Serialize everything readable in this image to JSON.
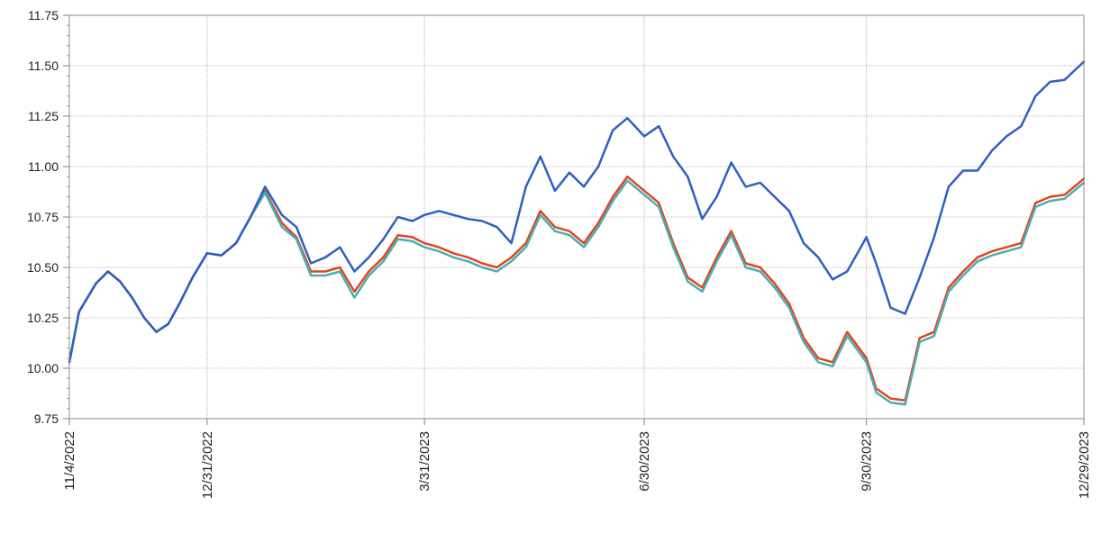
{
  "chart_data": {
    "type": "line",
    "title": "",
    "xlabel": "",
    "ylabel": "",
    "ylim": [
      9.75,
      11.75
    ],
    "yticks": [
      "9.75",
      "10.00",
      "10.25",
      "10.50",
      "10.75",
      "11.00",
      "11.25",
      "11.50",
      "11.75"
    ],
    "xticks": [
      "11/4/2022",
      "12/31/2022",
      "3/31/2023",
      "6/30/2023",
      "9/30/2023",
      "12/29/2023"
    ],
    "xtick_dates": [
      "2022-11-04",
      "2022-12-31",
      "2023-03-31",
      "2023-06-30",
      "2023-09-30",
      "2023-12-29"
    ],
    "xlim": [
      "2022-11-04",
      "2023-12-29"
    ],
    "grid": true,
    "legend": "none",
    "series": [
      {
        "color": "#2f5fc4",
        "x": [
          "2022-11-04",
          "2022-11-08",
          "2022-11-10",
          "2022-11-15",
          "2022-11-20",
          "2022-11-25",
          "2022-11-30",
          "2022-12-05",
          "2022-12-10",
          "2022-12-15",
          "2022-12-20",
          "2022-12-25",
          "2022-12-31",
          "2023-01-06",
          "2023-01-12",
          "2023-01-18",
          "2023-01-24",
          "2023-01-31",
          "2023-02-06",
          "2023-02-12",
          "2023-02-18",
          "2023-02-24",
          "2023-03-02",
          "2023-03-08",
          "2023-03-14",
          "2023-03-20",
          "2023-03-26",
          "2023-03-31",
          "2023-04-06",
          "2023-04-12",
          "2023-04-18",
          "2023-04-24",
          "2023-04-30",
          "2023-05-06",
          "2023-05-12",
          "2023-05-18",
          "2023-05-24",
          "2023-05-30",
          "2023-06-05",
          "2023-06-11",
          "2023-06-17",
          "2023-06-23",
          "2023-06-30",
          "2023-07-06",
          "2023-07-12",
          "2023-07-18",
          "2023-07-24",
          "2023-07-30",
          "2023-08-05",
          "2023-08-11",
          "2023-08-17",
          "2023-08-23",
          "2023-08-29",
          "2023-09-04",
          "2023-09-10",
          "2023-09-16",
          "2023-09-22",
          "2023-09-30",
          "2023-10-04",
          "2023-10-10",
          "2023-10-16",
          "2023-10-22",
          "2023-10-28",
          "2023-11-03",
          "2023-11-09",
          "2023-11-15",
          "2023-11-21",
          "2023-11-27",
          "2023-12-03",
          "2023-12-09",
          "2023-12-15",
          "2023-12-21",
          "2023-12-29"
        ],
        "values": [
          10.03,
          10.28,
          10.32,
          10.42,
          10.48,
          10.43,
          10.35,
          10.25,
          10.18,
          10.22,
          10.33,
          10.45,
          10.57,
          10.56,
          10.62,
          10.75,
          10.9,
          10.76,
          10.7,
          10.52,
          10.55,
          10.6,
          10.48,
          10.55,
          10.64,
          10.75,
          10.73,
          10.76,
          10.78,
          10.76,
          10.74,
          10.73,
          10.7,
          10.62,
          10.9,
          11.05,
          10.88,
          10.97,
          10.9,
          11.0,
          11.18,
          11.24,
          11.15,
          11.2,
          11.05,
          10.95,
          10.74,
          10.85,
          11.02,
          10.9,
          10.92,
          10.85,
          10.78,
          10.62,
          10.55,
          10.44,
          10.48,
          10.65,
          10.52,
          10.3,
          10.27,
          10.45,
          10.65,
          10.9,
          10.98,
          10.98,
          11.08,
          11.15,
          11.2,
          11.35,
          11.42,
          11.43,
          11.52
        ]
      },
      {
        "color": "#e0451f",
        "x": [
          "2022-11-04",
          "2022-11-08",
          "2022-11-10",
          "2022-11-15",
          "2022-11-20",
          "2022-11-25",
          "2022-11-30",
          "2022-12-05",
          "2022-12-10",
          "2022-12-15",
          "2022-12-20",
          "2022-12-25",
          "2022-12-31",
          "2023-01-06",
          "2023-01-12",
          "2023-01-18",
          "2023-01-24",
          "2023-01-31",
          "2023-02-06",
          "2023-02-12",
          "2023-02-18",
          "2023-02-24",
          "2023-03-02",
          "2023-03-08",
          "2023-03-14",
          "2023-03-20",
          "2023-03-26",
          "2023-03-31",
          "2023-04-06",
          "2023-04-12",
          "2023-04-18",
          "2023-04-24",
          "2023-04-30",
          "2023-05-06",
          "2023-05-12",
          "2023-05-18",
          "2023-05-24",
          "2023-05-30",
          "2023-06-05",
          "2023-06-11",
          "2023-06-17",
          "2023-06-23",
          "2023-06-30",
          "2023-07-06",
          "2023-07-12",
          "2023-07-18",
          "2023-07-24",
          "2023-07-30",
          "2023-08-05",
          "2023-08-11",
          "2023-08-17",
          "2023-08-23",
          "2023-08-29",
          "2023-09-04",
          "2023-09-10",
          "2023-09-16",
          "2023-09-22",
          "2023-09-30",
          "2023-10-04",
          "2023-10-10",
          "2023-10-16",
          "2023-10-22",
          "2023-10-28",
          "2023-11-03",
          "2023-11-09",
          "2023-11-15",
          "2023-11-21",
          "2023-11-27",
          "2023-12-03",
          "2023-12-09",
          "2023-12-15",
          "2023-12-21",
          "2023-12-29"
        ],
        "values": [
          10.03,
          10.28,
          10.32,
          10.42,
          10.48,
          10.43,
          10.35,
          10.25,
          10.18,
          10.22,
          10.33,
          10.45,
          10.57,
          10.56,
          10.62,
          10.75,
          10.88,
          10.72,
          10.65,
          10.48,
          10.48,
          10.5,
          10.38,
          10.48,
          10.55,
          10.66,
          10.65,
          10.62,
          10.6,
          10.57,
          10.55,
          10.52,
          10.5,
          10.55,
          10.62,
          10.78,
          10.7,
          10.68,
          10.62,
          10.72,
          10.85,
          10.95,
          10.88,
          10.82,
          10.62,
          10.45,
          10.4,
          10.55,
          10.68,
          10.52,
          10.5,
          10.42,
          10.32,
          10.15,
          10.05,
          10.03,
          10.18,
          10.05,
          9.9,
          9.85,
          9.84,
          10.15,
          10.18,
          10.4,
          10.48,
          10.55,
          10.58,
          10.6,
          10.62,
          10.82,
          10.85,
          10.86,
          10.94
        ]
      },
      {
        "color": "#4aaeb2",
        "x": [
          "2022-11-04",
          "2022-11-08",
          "2022-11-10",
          "2022-11-15",
          "2022-11-20",
          "2022-11-25",
          "2022-11-30",
          "2022-12-05",
          "2022-12-10",
          "2022-12-15",
          "2022-12-20",
          "2022-12-25",
          "2022-12-31",
          "2023-01-06",
          "2023-01-12",
          "2023-01-18",
          "2023-01-24",
          "2023-01-31",
          "2023-02-06",
          "2023-02-12",
          "2023-02-18",
          "2023-02-24",
          "2023-03-02",
          "2023-03-08",
          "2023-03-14",
          "2023-03-20",
          "2023-03-26",
          "2023-03-31",
          "2023-04-06",
          "2023-04-12",
          "2023-04-18",
          "2023-04-24",
          "2023-04-30",
          "2023-05-06",
          "2023-05-12",
          "2023-05-18",
          "2023-05-24",
          "2023-05-30",
          "2023-06-05",
          "2023-06-11",
          "2023-06-17",
          "2023-06-23",
          "2023-06-30",
          "2023-07-06",
          "2023-07-12",
          "2023-07-18",
          "2023-07-24",
          "2023-07-30",
          "2023-08-05",
          "2023-08-11",
          "2023-08-17",
          "2023-08-23",
          "2023-08-29",
          "2023-09-04",
          "2023-09-10",
          "2023-09-16",
          "2023-09-22",
          "2023-09-30",
          "2023-10-04",
          "2023-10-10",
          "2023-10-16",
          "2023-10-22",
          "2023-10-28",
          "2023-11-03",
          "2023-11-09",
          "2023-11-15",
          "2023-11-21",
          "2023-11-27",
          "2023-12-03",
          "2023-12-09",
          "2023-12-15",
          "2023-12-21",
          "2023-12-29"
        ],
        "values": [
          10.03,
          10.28,
          10.32,
          10.42,
          10.48,
          10.43,
          10.35,
          10.25,
          10.18,
          10.22,
          10.33,
          10.45,
          10.57,
          10.56,
          10.62,
          10.75,
          10.87,
          10.7,
          10.64,
          10.46,
          10.46,
          10.48,
          10.35,
          10.46,
          10.53,
          10.64,
          10.63,
          10.6,
          10.58,
          10.55,
          10.53,
          10.5,
          10.48,
          10.53,
          10.6,
          10.76,
          10.68,
          10.66,
          10.6,
          10.7,
          10.83,
          10.93,
          10.86,
          10.8,
          10.6,
          10.43,
          10.38,
          10.53,
          10.66,
          10.5,
          10.48,
          10.4,
          10.3,
          10.13,
          10.03,
          10.01,
          10.16,
          10.03,
          9.88,
          9.83,
          9.82,
          10.13,
          10.16,
          10.38,
          10.46,
          10.53,
          10.56,
          10.58,
          10.6,
          10.8,
          10.83,
          10.84,
          10.92
        ]
      }
    ]
  }
}
